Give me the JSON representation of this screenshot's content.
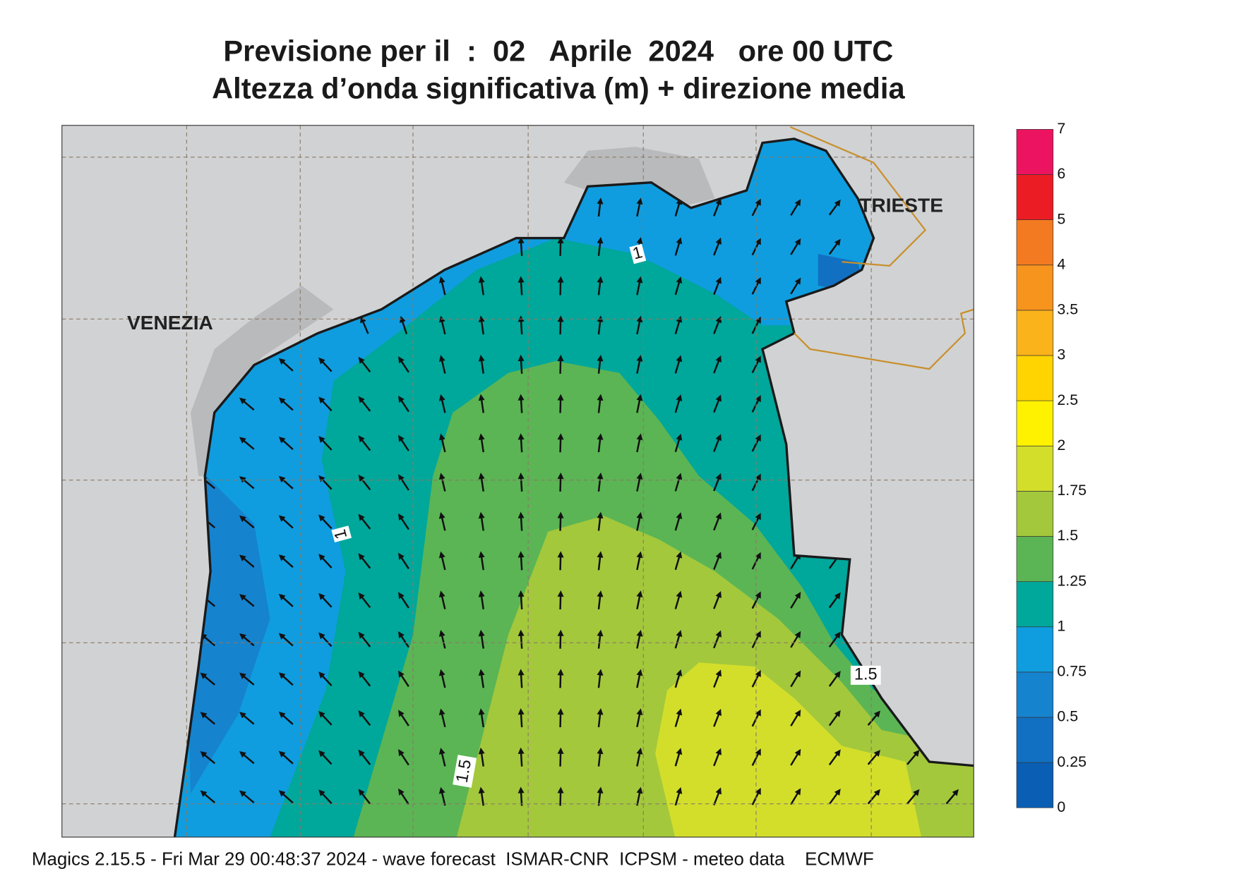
{
  "title": {
    "line1": "Previsione per il  :  02   Aprile  2024   ore 00 UTC",
    "line2": "Altezza d’onda significativa (m) + direzione media"
  },
  "places": [
    "VENEZIA",
    "TRIESTE"
  ],
  "contour_labels": [
    "1",
    "1",
    "1.5",
    "1.5"
  ],
  "legend": {
    "levels": [
      0,
      0.25,
      0.5,
      0.75,
      1,
      1.25,
      1.5,
      1.75,
      2,
      2.5,
      3,
      3.5,
      4,
      5,
      6,
      7
    ],
    "colors": [
      "#0a5fb4",
      "#1270c2",
      "#1683cf",
      "#0f9ddf",
      "#00a79b",
      "#5bb554",
      "#a3c83c",
      "#d3de2b",
      "#fff200",
      "#ffd400",
      "#fbb31b",
      "#f7941d",
      "#f37a21",
      "#ec1c24",
      "#ec1460"
    ]
  },
  "footer": "Magics 2.15.5 - Fri Mar 29 00:48:37 2024 - wave forecast  ISMAR-CNR  ICPSM - meteo data    ECMWF"
}
